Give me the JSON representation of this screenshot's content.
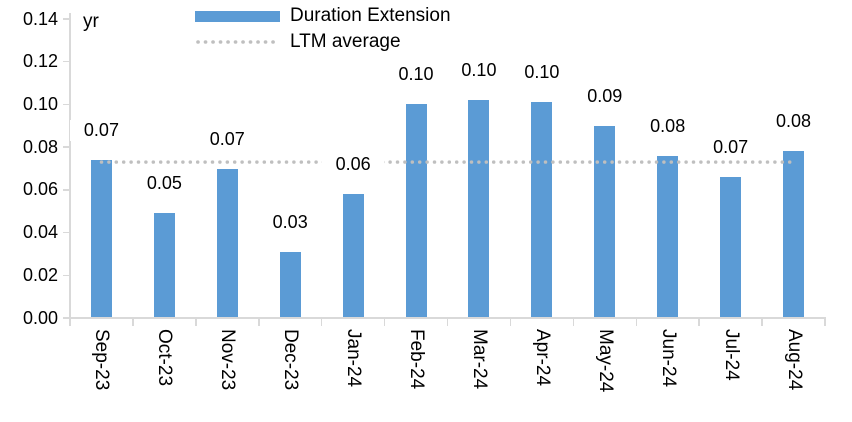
{
  "chart_data": {
    "type": "bar",
    "unit": "yr",
    "categories": [
      "Sep-23",
      "Oct-23",
      "Nov-23",
      "Dec-23",
      "Jan-24",
      "Feb-24",
      "Mar-24",
      "Apr-24",
      "May-24",
      "Jun-24",
      "Jul-24",
      "Aug-24"
    ],
    "series": [
      {
        "name": "Duration Extension",
        "values": [
          0.074,
          0.049,
          0.07,
          0.031,
          0.058,
          0.1,
          0.102,
          0.101,
          0.09,
          0.076,
          0.066,
          0.078
        ],
        "data_labels": [
          "0.07",
          "0.05",
          "0.07",
          "0.03",
          "0.06",
          "0.10",
          "0.10",
          "0.10",
          "0.09",
          "0.08",
          "0.07",
          "0.08"
        ]
      }
    ],
    "reference_line": {
      "name": "LTM average",
      "value": 0.073
    },
    "ylim": [
      0,
      0.14
    ],
    "ytick_labels": [
      "0.00",
      "0.02",
      "0.04",
      "0.06",
      "0.08",
      "0.10",
      "0.12",
      "0.14"
    ],
    "grid": "off",
    "legend_position": "top-center",
    "legend": [
      {
        "label": "Duration Extension",
        "swatch": "bar"
      },
      {
        "label": "LTM average",
        "swatch": "dotted-line"
      }
    ],
    "colors": {
      "bar": "#5B9BD5",
      "reference_line": "#BFBFBF",
      "axis": "#D9D9D9",
      "text": "#000000"
    }
  }
}
